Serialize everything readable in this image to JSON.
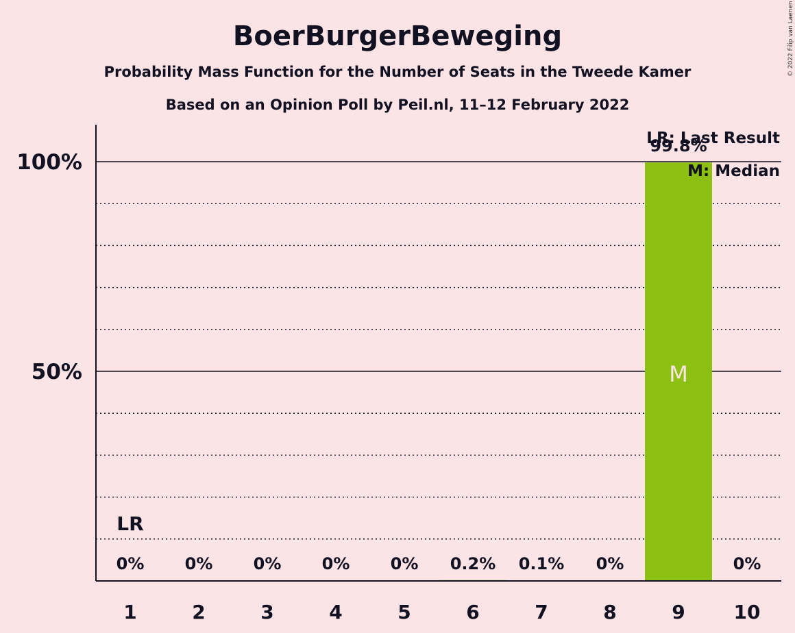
{
  "chart_data": {
    "type": "bar",
    "title": "BoerBurgerBeweging",
    "subtitle": "Probability Mass Function for the Number of Seats in the Tweede Kamer",
    "subtitle2": "Based on an Opinion Poll by Peil.nl, 11–12 February 2022",
    "copyright": "© 2022 Filip van Laenen",
    "categories": [
      "1",
      "2",
      "3",
      "4",
      "5",
      "6",
      "7",
      "8",
      "9",
      "10"
    ],
    "values": [
      0,
      0,
      0,
      0,
      0,
      0.2,
      0.1,
      0,
      99.8,
      0
    ],
    "value_labels": [
      "0%",
      "0%",
      "0%",
      "0%",
      "0%",
      "0.2%",
      "0.1%",
      "0%",
      "99.8%",
      "0%"
    ],
    "ylim": [
      0,
      110
    ],
    "y_ticks": [
      {
        "value": 50,
        "label": "50%"
      },
      {
        "value": 100,
        "label": "100%"
      }
    ],
    "minor_gridlines": [
      10,
      20,
      30,
      40,
      60,
      70,
      80,
      90
    ],
    "bar_color": "#8cc114",
    "last_result": {
      "category": "1",
      "label": "LR"
    },
    "median": {
      "category": "9",
      "label": "M"
    },
    "legend": {
      "placement": "top-right",
      "items": [
        "LR: Last Result",
        "M: Median"
      ]
    }
  }
}
